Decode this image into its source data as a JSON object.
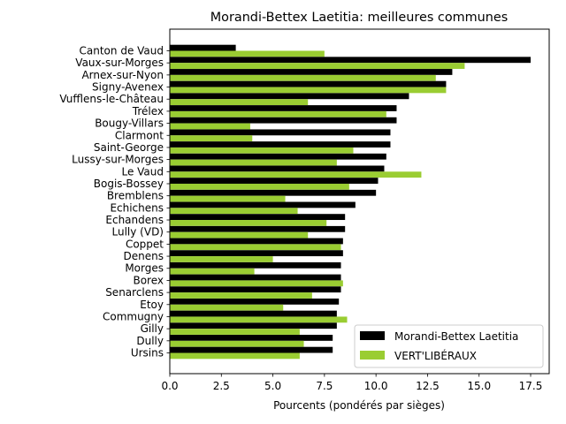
{
  "chart_data": {
    "type": "bar",
    "orientation": "horizontal",
    "title": "Morandi-Bettex Laetitia: meilleures communes",
    "xlabel": "Pourcents (pondérés par sièges)",
    "ylabel": "",
    "xlim": [
      0,
      18.4
    ],
    "xticks": [
      "0.0",
      "2.5",
      "5.0",
      "7.5",
      "10.0",
      "12.5",
      "15.0",
      "17.5"
    ],
    "xtick_values": [
      0,
      2.5,
      5,
      7.5,
      10,
      12.5,
      15,
      17.5
    ],
    "grid": false,
    "legend_position": "lower right",
    "categories": [
      "Canton de Vaud",
      "Vaux-sur-Morges",
      "Arnex-sur-Nyon",
      "Signy-Avenex",
      "Vufflens-le-Château",
      "Trélex",
      "Bougy-Villars",
      "Clarmont",
      "Saint-George",
      "Lussy-sur-Morges",
      "Le Vaud",
      "Bogis-Bossey",
      "Bremblens",
      "Echichens",
      "Echandens",
      "Lully (VD)",
      "Coppet",
      "Denens",
      "Morges",
      "Borex",
      "Senarclens",
      "Etoy",
      "Commugny",
      "Gilly",
      "Dully",
      "Ursins"
    ],
    "series": [
      {
        "name": "Morandi-Bettex Laetitia",
        "color": "#000000",
        "values": [
          3.2,
          17.5,
          13.7,
          13.4,
          11.6,
          11.0,
          11.0,
          10.7,
          10.7,
          10.5,
          10.4,
          10.1,
          10.0,
          9.0,
          8.5,
          8.5,
          8.4,
          8.4,
          8.3,
          8.3,
          8.3,
          8.2,
          8.1,
          8.1,
          7.9,
          7.9
        ]
      },
      {
        "name": "VERT'LIBÉRAUX",
        "color": "#9acd32",
        "values": [
          7.5,
          14.3,
          12.9,
          13.4,
          6.7,
          10.5,
          3.9,
          4.0,
          8.9,
          8.1,
          12.2,
          8.7,
          5.6,
          6.2,
          7.6,
          6.7,
          8.3,
          5.0,
          4.1,
          8.4,
          6.9,
          5.5,
          8.6,
          6.3,
          6.5,
          6.3
        ]
      }
    ]
  }
}
